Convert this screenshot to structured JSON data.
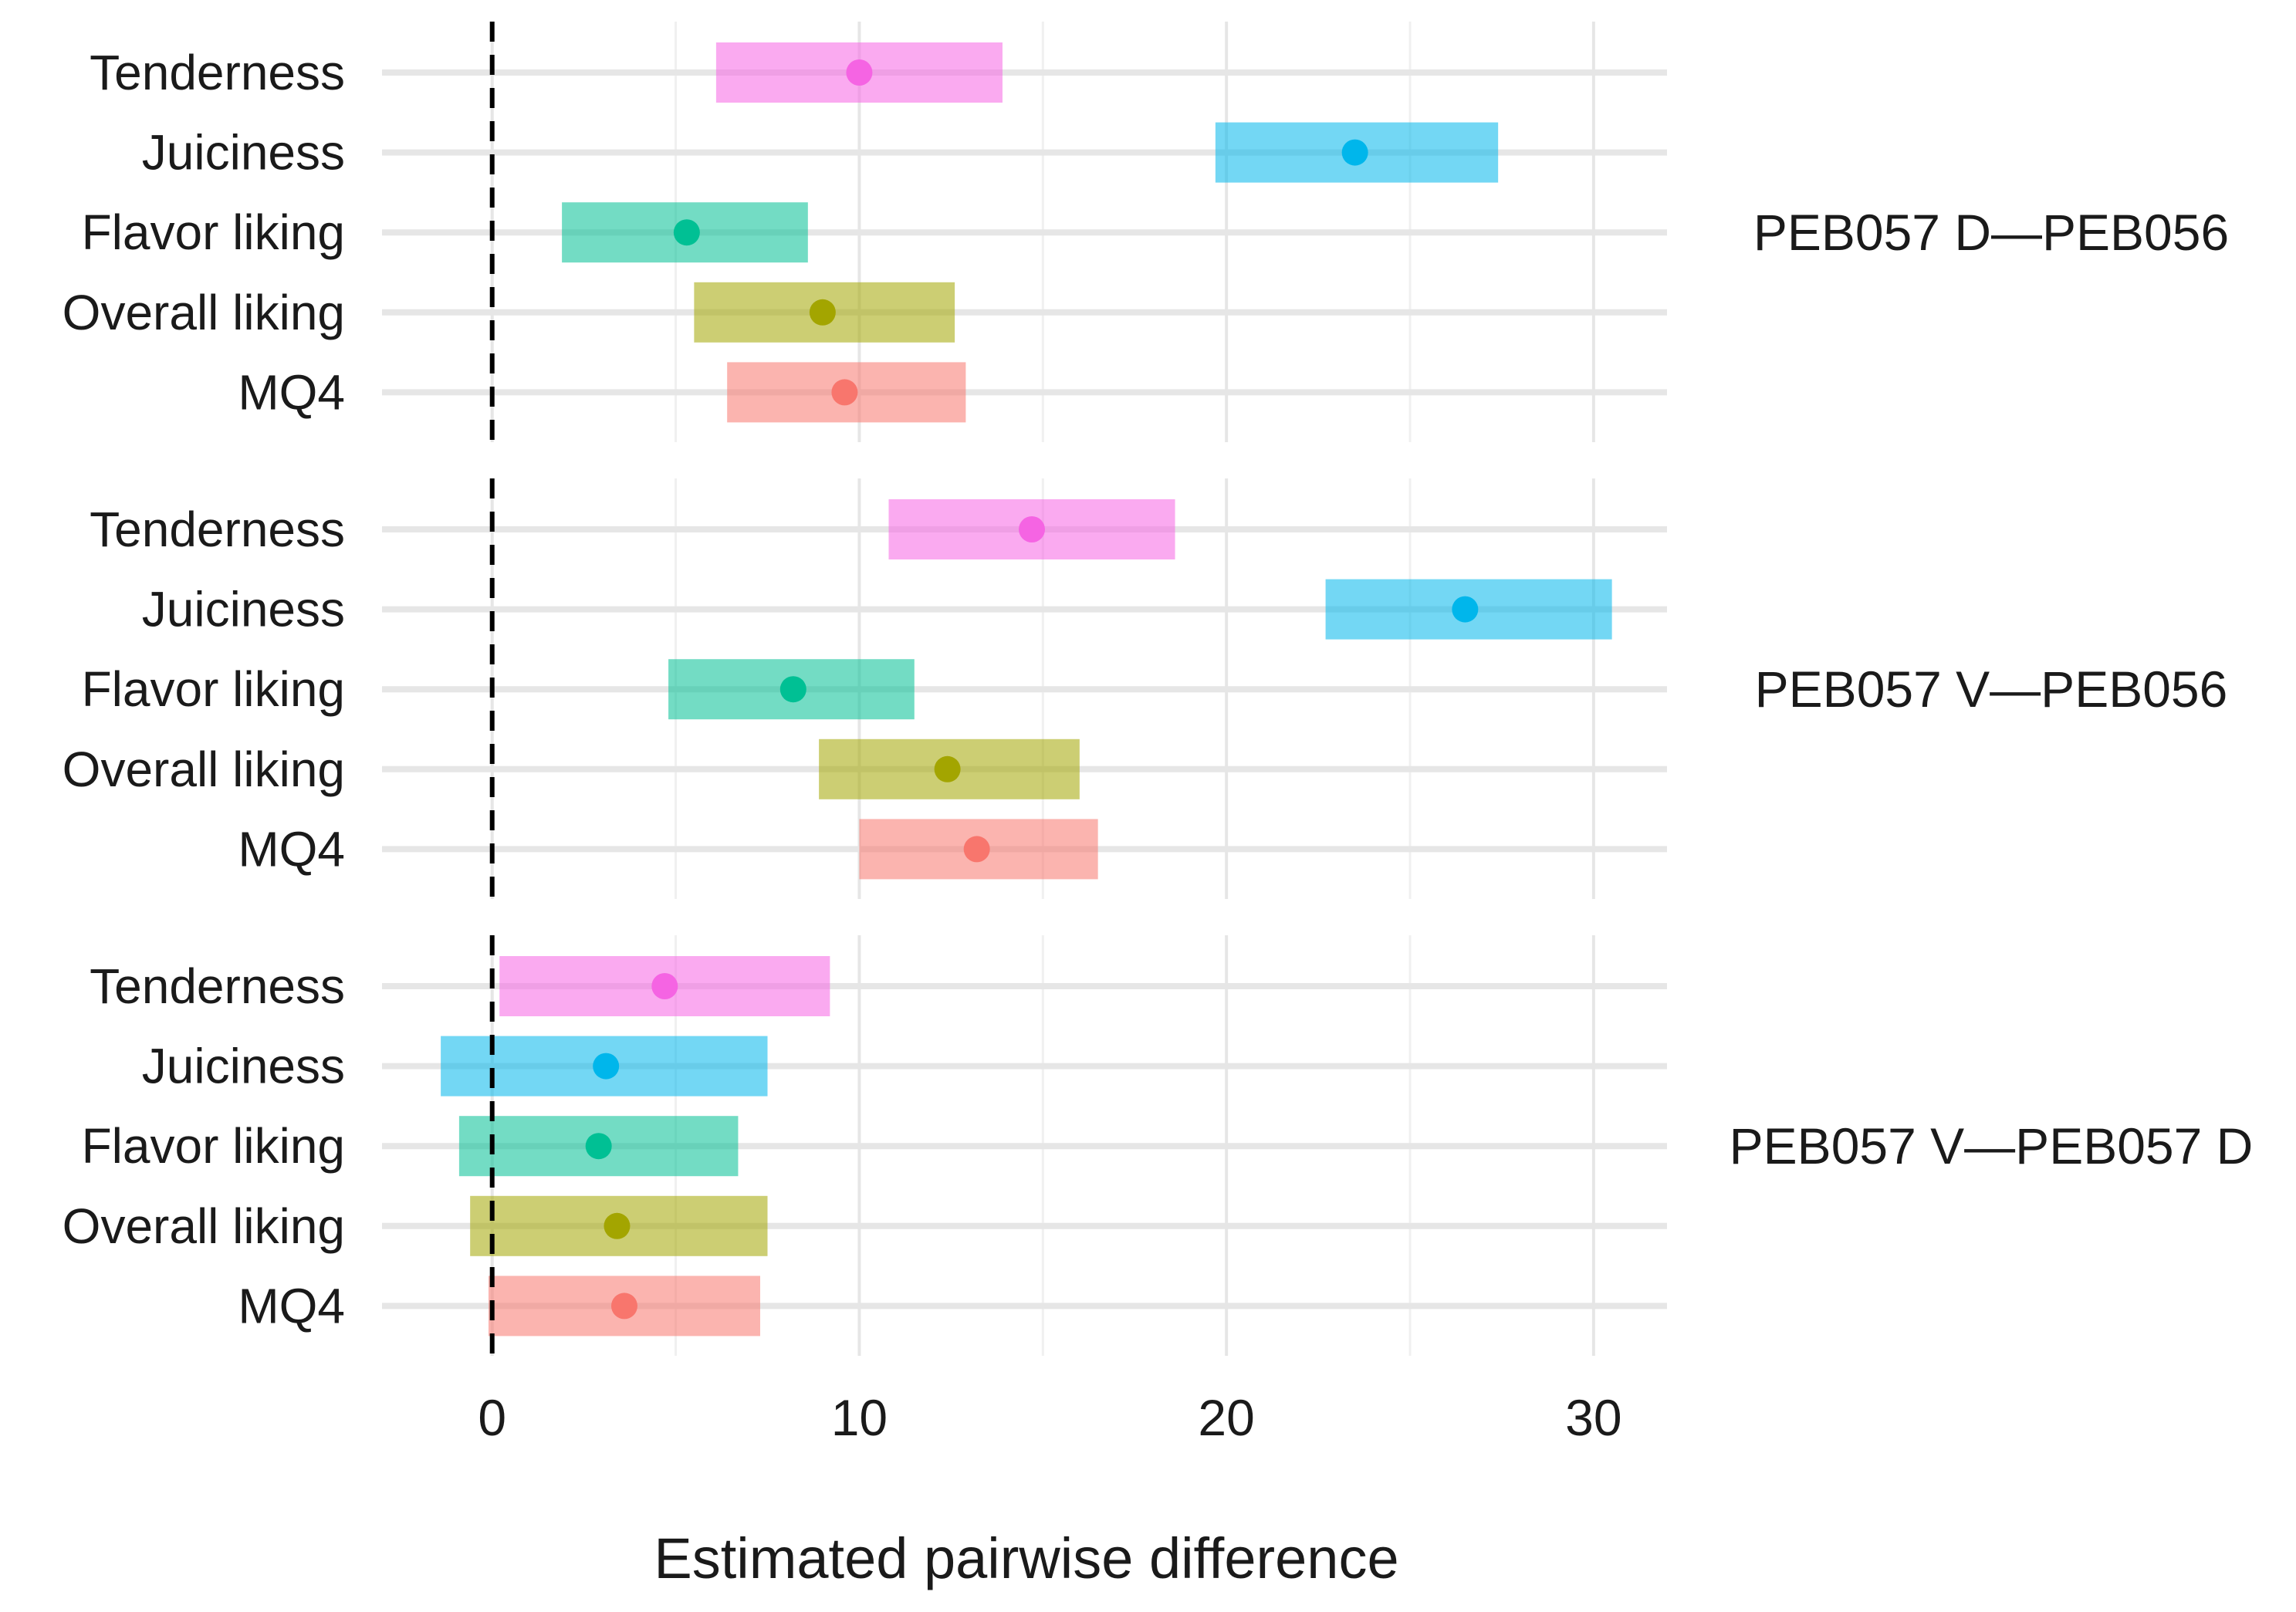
{
  "chart_data": {
    "type": "interval",
    "xlabel": "Estimated pairwise difference",
    "xlim": [
      -3,
      32
    ],
    "xticks": [
      0,
      10,
      20,
      30
    ],
    "reference_line": 0,
    "grid": true,
    "categories": [
      "Tenderness",
      "Juiciness",
      "Flavor liking",
      "Overall liking",
      "MQ4"
    ],
    "category_colors": {
      "Tenderness": "#F564E3",
      "Juiciness": "#00B6EB",
      "Flavor liking": "#00C094",
      "Overall liking": "#A3A500",
      "MQ4": "#F8766D"
    },
    "panels": [
      {
        "label": "PEB057 D—PEB056",
        "estimates": [
          {
            "category": "Tenderness",
            "estimate": 10.0,
            "lower": 6.1,
            "upper": 13.9
          },
          {
            "category": "Juiciness",
            "estimate": 23.5,
            "lower": 19.7,
            "upper": 27.4
          },
          {
            "category": "Flavor liking",
            "estimate": 5.3,
            "lower": 1.9,
            "upper": 8.6
          },
          {
            "category": "Overall liking",
            "estimate": 9.0,
            "lower": 5.5,
            "upper": 12.6
          },
          {
            "category": "MQ4",
            "estimate": 9.6,
            "lower": 6.4,
            "upper": 12.9
          }
        ]
      },
      {
        "label": "PEB057 V—PEB056",
        "estimates": [
          {
            "category": "Tenderness",
            "estimate": 14.7,
            "lower": 10.8,
            "upper": 18.6
          },
          {
            "category": "Juiciness",
            "estimate": 26.5,
            "lower": 22.7,
            "upper": 30.5
          },
          {
            "category": "Flavor liking",
            "estimate": 8.2,
            "lower": 4.8,
            "upper": 11.5
          },
          {
            "category": "Overall liking",
            "estimate": 12.4,
            "lower": 8.9,
            "upper": 16.0
          },
          {
            "category": "MQ4",
            "estimate": 13.2,
            "lower": 10.0,
            "upper": 16.5
          }
        ]
      },
      {
        "label": "PEB057 V—PEB057 D",
        "estimates": [
          {
            "category": "Tenderness",
            "estimate": 4.7,
            "lower": 0.2,
            "upper": 9.2
          },
          {
            "category": "Juiciness",
            "estimate": 3.1,
            "lower": -1.4,
            "upper": 7.5
          },
          {
            "category": "Flavor liking",
            "estimate": 2.9,
            "lower": -0.9,
            "upper": 6.7
          },
          {
            "category": "Overall liking",
            "estimate": 3.4,
            "lower": -0.6,
            "upper": 7.5
          },
          {
            "category": "MQ4",
            "estimate": 3.6,
            "lower": -0.1,
            "upper": 7.3
          }
        ]
      }
    ]
  }
}
